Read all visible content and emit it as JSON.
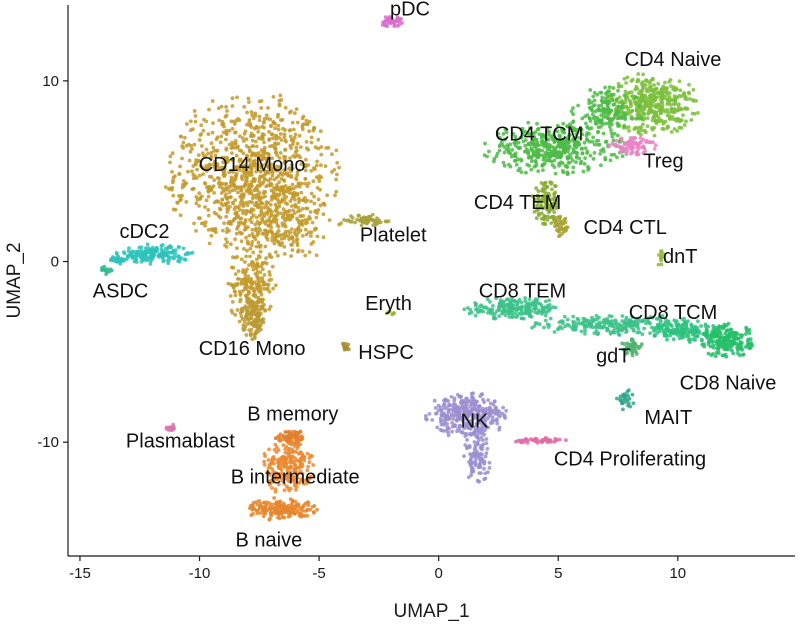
{
  "chart_data": {
    "type": "scatter",
    "title": "",
    "xlabel": "UMAP_1",
    "ylabel": "UMAP_2",
    "xlim": [
      -15.5,
      14.9
    ],
    "ylim": [
      -16.3,
      14.2
    ],
    "x_ticks": [
      -15,
      -10,
      -5,
      0,
      5,
      10
    ],
    "y_ticks": [
      -10,
      0,
      10
    ],
    "grid": false,
    "legend": "none",
    "clusters": [
      {
        "name": "CD14 Mono",
        "label_x": -7.8,
        "label_y": 5.4,
        "color": "#C39A2A",
        "blobs": [
          [
            -7.8,
            4.9,
            2.9,
            3.6,
            900
          ],
          [
            -6.6,
            2.3,
            2.0,
            2.0,
            250
          ],
          [
            -7.8,
            -1.3,
            0.8,
            2.2,
            220
          ]
        ]
      },
      {
        "name": "CD16 Mono",
        "label_x": -7.8,
        "label_y": -4.8,
        "color": "#B89A35",
        "blobs": [
          [
            -7.7,
            -3.1,
            0.45,
            1.0,
            90
          ]
        ]
      },
      {
        "name": "cDC2",
        "label_x": -12.3,
        "label_y": 1.7,
        "color": "#2DC3BC",
        "blobs": [
          [
            -11.9,
            0.4,
            1.3,
            0.45,
            160
          ],
          [
            -13.4,
            0.1,
            0.3,
            0.2,
            25
          ]
        ]
      },
      {
        "name": "ASDC",
        "label_x": -13.3,
        "label_y": -1.6,
        "color": "#2DB891",
        "blobs": [
          [
            -13.9,
            -0.5,
            0.2,
            0.2,
            12
          ]
        ]
      },
      {
        "name": "pDC",
        "label_x": -1.2,
        "label_y": 14.0,
        "color": "#D96FCE",
        "blobs": [
          [
            -2.0,
            13.3,
            0.4,
            0.25,
            40
          ]
        ]
      },
      {
        "name": "Platelet",
        "label_x": -1.9,
        "label_y": 1.5,
        "color": "#A9A03A",
        "blobs": [
          [
            -3.0,
            2.3,
            0.8,
            0.25,
            60
          ]
        ]
      },
      {
        "name": "Eryth",
        "label_x": -2.1,
        "label_y": -2.3,
        "color": "#9DB03C",
        "blobs": [
          [
            -2.0,
            -2.9,
            0.15,
            0.15,
            6
          ]
        ]
      },
      {
        "name": "HSPC",
        "label_x": -2.2,
        "label_y": -5.0,
        "color": "#A38F2F",
        "blobs": [
          [
            -3.9,
            -4.7,
            0.15,
            0.2,
            12
          ]
        ]
      },
      {
        "name": "CD4 Naive",
        "label_x": 9.8,
        "label_y": 11.2,
        "color": "#7BBF3C",
        "blobs": [
          [
            8.9,
            8.7,
            1.6,
            1.4,
            420
          ]
        ]
      },
      {
        "name": "CD4 TCM",
        "label_x": 4.2,
        "label_y": 7.1,
        "color": "#4CBB46",
        "blobs": [
          [
            4.8,
            6.3,
            2.4,
            1.2,
            420
          ],
          [
            7.0,
            8.3,
            1.2,
            1.2,
            140
          ]
        ]
      },
      {
        "name": "Treg",
        "label_x": 9.4,
        "label_y": 5.6,
        "color": "#E884C5",
        "blobs": [
          [
            8.1,
            6.4,
            0.8,
            0.4,
            80
          ]
        ]
      },
      {
        "name": "CD4 TEM",
        "label_x": 3.3,
        "label_y": 3.3,
        "color": "#8AAA33",
        "blobs": [
          [
            4.5,
            3.2,
            0.5,
            1.1,
            110
          ]
        ]
      },
      {
        "name": "CD4 CTL",
        "label_x": 7.8,
        "label_y": 1.9,
        "color": "#A7A232",
        "blobs": [
          [
            5.1,
            1.9,
            0.35,
            0.5,
            40
          ]
        ]
      },
      {
        "name": "dnT",
        "label_x": 10.1,
        "label_y": 0.3,
        "color": "#93B83A",
        "blobs": [
          [
            9.3,
            0.2,
            0.15,
            0.4,
            12
          ]
        ]
      },
      {
        "name": "CD8 TEM",
        "label_x": 3.5,
        "label_y": -1.6,
        "color": "#3DC28A",
        "blobs": [
          [
            3.2,
            -2.6,
            1.7,
            0.5,
            200
          ],
          [
            7.5,
            -3.5,
            3.0,
            0.45,
            260
          ]
        ]
      },
      {
        "name": "CD8 TCM",
        "label_x": 9.8,
        "label_y": -2.8,
        "color": "#2DC27F",
        "blobs": [
          [
            10.3,
            -3.9,
            1.1,
            0.45,
            120
          ]
        ]
      },
      {
        "name": "CD8 Naive",
        "label_x": 12.1,
        "label_y": -6.7,
        "color": "#26BE6A",
        "blobs": [
          [
            12.1,
            -4.4,
            0.9,
            0.8,
            200
          ]
        ]
      },
      {
        "name": "gdT",
        "label_x": 7.3,
        "label_y": -5.2,
        "color": "#4FB36F",
        "blobs": [
          [
            8.1,
            -4.7,
            0.4,
            0.4,
            40
          ]
        ]
      },
      {
        "name": "MAIT",
        "label_x": 9.6,
        "label_y": -8.6,
        "color": "#2EA58B",
        "blobs": [
          [
            7.8,
            -7.7,
            0.3,
            0.5,
            25
          ]
        ]
      },
      {
        "name": "NK",
        "label_x": 1.5,
        "label_y": -8.8,
        "color": "#9B8FD0",
        "blobs": [
          [
            1.2,
            -8.5,
            1.4,
            1.0,
            320
          ],
          [
            1.6,
            -10.6,
            0.5,
            1.4,
            110
          ]
        ]
      },
      {
        "name": "CD4 Proliferating",
        "label_x": 8.0,
        "label_y": -10.9,
        "color": "#E26BA6",
        "blobs": [
          [
            4.2,
            -9.9,
            0.9,
            0.12,
            50
          ]
        ]
      },
      {
        "name": "Plasmablast",
        "label_x": -10.8,
        "label_y": -9.9,
        "color": "#D875B0",
        "blobs": [
          [
            -11.2,
            -9.2,
            0.2,
            0.15,
            14
          ]
        ]
      },
      {
        "name": "B memory",
        "label_x": -6.1,
        "label_y": -8.4,
        "color": "#E0802E",
        "blobs": [
          [
            -6.1,
            -9.7,
            0.6,
            0.35,
            70
          ]
        ]
      },
      {
        "name": "B intermediate",
        "label_x": -6.0,
        "label_y": -11.9,
        "color": "#EA8B30",
        "blobs": [
          [
            -6.3,
            -11.4,
            0.9,
            1.2,
            230
          ]
        ]
      },
      {
        "name": "B naive",
        "label_x": -7.1,
        "label_y": -15.4,
        "color": "#E6862C",
        "blobs": [
          [
            -6.6,
            -13.7,
            1.2,
            0.5,
            170
          ]
        ]
      }
    ]
  }
}
